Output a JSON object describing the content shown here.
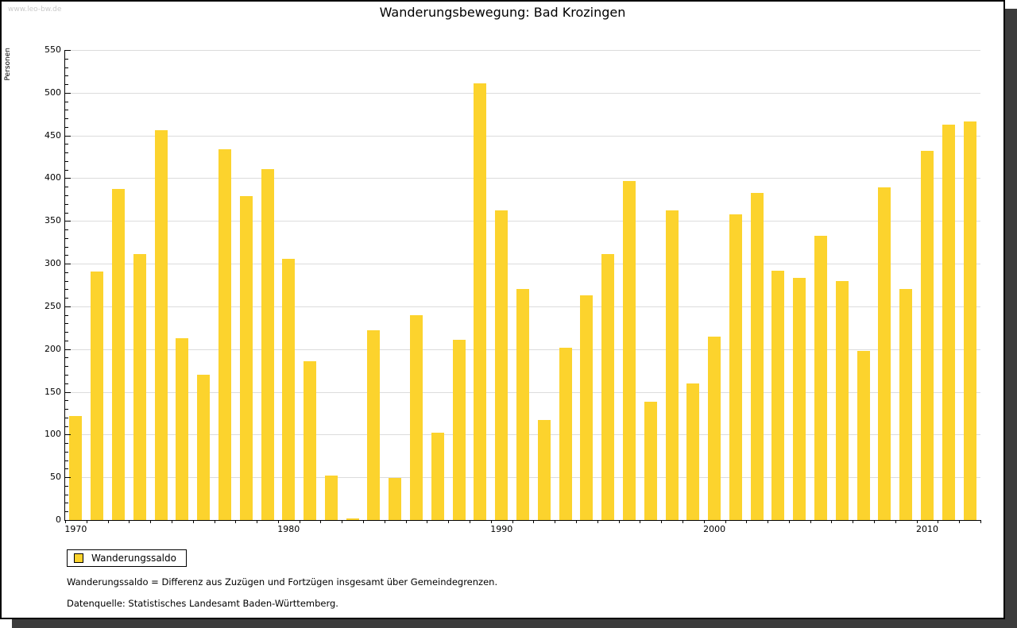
{
  "watermark": "www.leo-bw.de",
  "title": "Wanderungsbewegung: Bad Krozingen",
  "y_axis_label": "Personen",
  "legend": {
    "label": "Wanderungssaldo"
  },
  "footnotes": [
    "Wanderungssaldo = Differenz aus Zuzügen und Fortzügen insgesamt über Gemeindegrenzen.",
    "Datenquelle: Statistisches Landesamt Baden-Württemberg."
  ],
  "colors": {
    "bar": "#fcd32d",
    "grid": "#dcdcdc",
    "axis": "#000000",
    "watermark": "#c9c9c9",
    "frame_shadow": "#3c3c3c"
  },
  "chart_data": {
    "type": "bar",
    "title": "Wanderungsbewegung: Bad Krozingen",
    "xlabel": "",
    "ylabel": "Personen",
    "ylim": [
      0,
      550
    ],
    "y_tick_step": 50,
    "y_minor_tick_step": 10,
    "grid": true,
    "legend_position": "bottom-left",
    "series_name": "Wanderungssaldo",
    "categories": [
      1970,
      1971,
      1972,
      1973,
      1974,
      1975,
      1976,
      1977,
      1978,
      1979,
      1980,
      1981,
      1982,
      1983,
      1984,
      1985,
      1986,
      1987,
      1988,
      1989,
      1990,
      1991,
      1992,
      1993,
      1994,
      1995,
      1996,
      1997,
      1998,
      1999,
      2000,
      2001,
      2002,
      2003,
      2004,
      2005,
      2006,
      2007,
      2008,
      2009,
      2010,
      2011,
      2012
    ],
    "values": [
      122,
      291,
      387,
      311,
      456,
      213,
      170,
      434,
      379,
      411,
      306,
      186,
      52,
      2,
      222,
      49,
      240,
      102,
      211,
      511,
      362,
      270,
      117,
      202,
      263,
      311,
      397,
      138,
      362,
      160,
      215,
      358,
      383,
      292,
      283,
      333,
      280,
      198,
      389,
      270,
      432,
      463,
      466
    ],
    "x_tick_years": [
      1970,
      1980,
      1990,
      2000,
      2010
    ],
    "x_tick_labels": [
      "1970",
      "1980",
      "1990",
      "2000",
      "2010"
    ]
  }
}
